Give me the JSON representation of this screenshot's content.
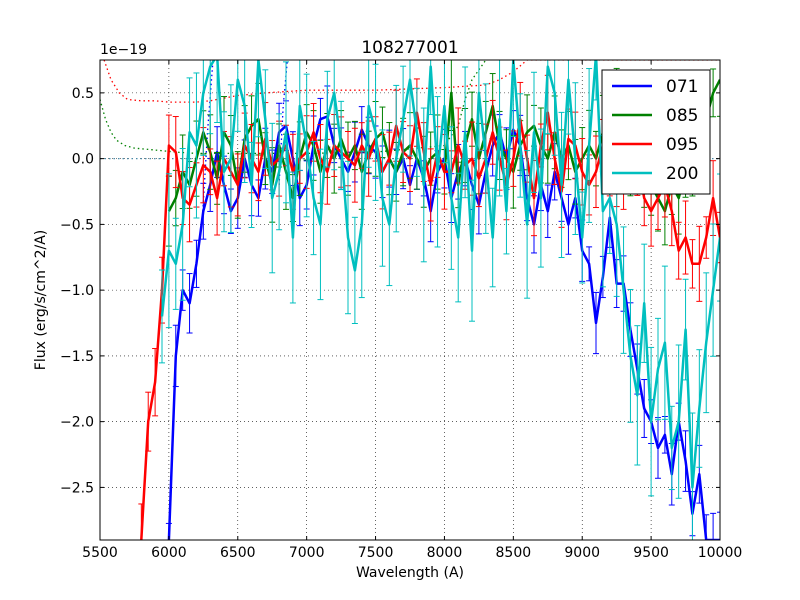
{
  "chart_data": {
    "type": "line",
    "title": "108277001",
    "xlabel": "Wavelength (A)",
    "ylabel": "Flux (erg/s/cm^2/A)",
    "offset_text": "1e−19",
    "xlim": [
      5500,
      10000
    ],
    "ylim": [
      -2.9,
      0.75
    ],
    "xticks": [
      5500,
      6000,
      6500,
      7000,
      7500,
      8000,
      8500,
      9000,
      9500,
      10000
    ],
    "yticks": [
      -2.5,
      -2.0,
      -1.5,
      -1.0,
      -0.5,
      0.0,
      0.5
    ],
    "xtick_labels": [
      "5500",
      "6000",
      "6500",
      "7000",
      "7500",
      "8000",
      "8500",
      "9000",
      "9500",
      "10000"
    ],
    "ytick_labels": [
      "−2.5",
      "−2.0",
      "−1.5",
      "−1.0",
      "−0.5",
      "0.0",
      "0.5"
    ],
    "grid": true,
    "legend_position": "top-right",
    "series": [
      {
        "name": "071",
        "color": "#0000ff",
        "x": [
          6000,
          6050,
          6100,
          6150,
          6200,
          6250,
          6300,
          6350,
          6400,
          6450,
          6500,
          6550,
          6600,
          6650,
          6700,
          6750,
          6800,
          6850,
          6900,
          6950,
          7000,
          7050,
          7100,
          7150,
          7200,
          7250,
          7300,
          7350,
          7400,
          7450,
          7500,
          7550,
          7600,
          7650,
          7700,
          7750,
          7800,
          7850,
          7900,
          7950,
          8000,
          8050,
          8100,
          8150,
          8200,
          8250,
          8300,
          8350,
          8400,
          8450,
          8500,
          8550,
          8600,
          8650,
          8700,
          8750,
          8800,
          8850,
          8900,
          8950,
          9000,
          9050,
          9100,
          9150,
          9200,
          9250,
          9300,
          9350,
          9400,
          9450,
          9500,
          9550,
          9600,
          9650,
          9700,
          9750,
          9800,
          9850,
          9900,
          9950,
          10000
        ],
        "y": [
          -2.9,
          -1.5,
          -1.0,
          -1.1,
          -0.8,
          -0.4,
          -0.2,
          0.05,
          -0.2,
          -0.4,
          -0.3,
          0.0,
          -0.2,
          -0.3,
          0.0,
          -0.1,
          0.2,
          0.25,
          0.0,
          -0.3,
          -0.2,
          0.1,
          0.3,
          0.32,
          0.1,
          0.0,
          -0.1,
          0.05,
          0.22,
          0.1,
          0.05,
          -0.1,
          0.0,
          -0.1,
          0.0,
          -0.2,
          0.0,
          -0.15,
          -0.4,
          -0.1,
          0.0,
          -0.3,
          -0.1,
          0.0,
          -0.2,
          -0.35,
          -0.1,
          0.1,
          0.2,
          0.0,
          0.22,
          0.1,
          -0.3,
          -0.5,
          -0.2,
          -0.4,
          -0.1,
          -0.3,
          -0.5,
          -0.3,
          -0.7,
          -0.8,
          -1.25,
          -0.9,
          -0.45,
          -0.95,
          -0.95,
          -1.3,
          -1.6,
          -1.9,
          -2.0,
          -2.2,
          -2.1,
          -2.4,
          -2.0,
          -2.3,
          -2.7,
          -2.4,
          -2.9,
          -2.9,
          -2.9
        ],
        "err": 0.18
      },
      {
        "name": "085",
        "color": "#008000",
        "x": [
          6000,
          6050,
          6100,
          6150,
          6200,
          6250,
          6300,
          6350,
          6400,
          6450,
          6500,
          6550,
          6600,
          6650,
          6700,
          6750,
          6800,
          6850,
          6900,
          6950,
          7000,
          7050,
          7100,
          7150,
          7200,
          7250,
          7300,
          7350,
          7400,
          7450,
          7500,
          7550,
          7600,
          7650,
          7700,
          7750,
          7800,
          7850,
          7900,
          7950,
          8000,
          8050,
          8100,
          8150,
          8200,
          8250,
          8300,
          8350,
          8400,
          8450,
          8500,
          8550,
          8600,
          8650,
          8700,
          8750,
          8800,
          8850,
          8900,
          8950,
          9000,
          9050,
          9100,
          9150,
          9200,
          9250,
          9300,
          9350,
          9400,
          9450,
          9500,
          9550,
          9600,
          9650,
          9700,
          9750,
          9800,
          9850,
          9900,
          9950,
          10000
        ],
        "y": [
          -0.4,
          -0.3,
          -0.1,
          -0.2,
          0.0,
          0.2,
          0.05,
          -0.15,
          0.2,
          0.1,
          -0.2,
          0.15,
          0.25,
          0.3,
          0.0,
          -0.2,
          0.1,
          -0.1,
          -0.3,
          0.0,
          0.2,
          0.1,
          -0.1,
          0.1,
          0.0,
          0.15,
          0.0,
          0.1,
          -0.1,
          0.05,
          0.15,
          0.2,
          0.0,
          -0.1,
          0.05,
          0.1,
          0.0,
          -0.1,
          0.0,
          0.05,
          -0.1,
          0.5,
          -0.2,
          0.1,
          0.3,
          0.0,
          0.2,
          0.4,
          0.1,
          0.0,
          -0.1,
          0.1,
          0.2,
          0.25,
          0.1,
          0.0,
          0.2,
          0.0,
          0.1,
          -0.1,
          0.0,
          0.1,
          0.0,
          0.2,
          0.3,
          0.4,
          0.2,
          0.0,
          0.1,
          -0.1,
          -0.2,
          -0.3,
          -0.4,
          -0.2,
          -0.3,
          -0.1,
          0.0,
          0.1,
          0.3,
          0.5,
          0.6
        ],
        "err": 0.22
      },
      {
        "name": "095",
        "color": "#ff0000",
        "x": [
          5800,
          5850,
          5900,
          5950,
          6000,
          6050,
          6100,
          6150,
          6200,
          6250,
          6300,
          6350,
          6400,
          6450,
          6500,
          6550,
          6600,
          6650,
          6700,
          6750,
          6800,
          6850,
          6900,
          6950,
          7000,
          7050,
          7100,
          7150,
          7200,
          7250,
          7300,
          7350,
          7400,
          7450,
          7500,
          7550,
          7600,
          7650,
          7700,
          7750,
          7800,
          7850,
          7900,
          7950,
          8000,
          8050,
          8100,
          8150,
          8200,
          8250,
          8300,
          8350,
          8400,
          8450,
          8500,
          8550,
          8600,
          8650,
          8700,
          8750,
          8800,
          8850,
          8900,
          8950,
          9000,
          9050,
          9100,
          9150,
          9200,
          9250,
          9300,
          9350,
          9400,
          9450,
          9500,
          9550,
          9600,
          9650,
          9700,
          9750,
          9800,
          9850,
          9900,
          9950,
          10000
        ],
        "y": [
          -2.9,
          -2.0,
          -1.7,
          -1.0,
          0.1,
          0.05,
          -0.3,
          -0.35,
          -0.2,
          -0.05,
          -0.1,
          -0.3,
          0.0,
          -0.1,
          -0.2,
          0.1,
          0.0,
          -0.1,
          0.15,
          -0.05,
          0.0,
          0.1,
          -0.1,
          0.0,
          0.05,
          0.2,
          0.0,
          -0.1,
          0.1,
          0.05,
          0.0,
          -0.05,
          0.1,
          0.0,
          0.15,
          -0.1,
          0.0,
          0.25,
          0.05,
          0.0,
          0.35,
          0.05,
          -0.2,
          0.05,
          -0.1,
          -0.1,
          0.1,
          -0.05,
          0.0,
          -0.15,
          0.0,
          0.2,
          0.0,
          -0.2,
          0.0,
          0.3,
          0.0,
          -0.3,
          0.1,
          0.35,
          0.0,
          -0.25,
          0.15,
          0.1,
          -0.1,
          -0.2,
          -0.1,
          0.1,
          0.0,
          -0.2,
          -0.1,
          0.2,
          0.0,
          -0.3,
          -0.4,
          -0.3,
          -0.2,
          -0.4,
          -0.7,
          -0.6,
          -0.8,
          -0.8,
          -0.6,
          -0.3,
          -0.6
        ],
        "err": 0.22
      },
      {
        "name": "200",
        "color": "#00bfbf",
        "x": [
          5950,
          6000,
          6050,
          6100,
          6150,
          6200,
          6250,
          6300,
          6350,
          6400,
          6450,
          6500,
          6550,
          6600,
          6650,
          6700,
          6750,
          6800,
          6850,
          6900,
          6950,
          7000,
          7050,
          7100,
          7150,
          7200,
          7250,
          7300,
          7350,
          7400,
          7450,
          7500,
          7550,
          7600,
          7650,
          7700,
          7750,
          7800,
          7850,
          7900,
          7950,
          8000,
          8050,
          8100,
          8150,
          8200,
          8250,
          8300,
          8350,
          8400,
          8450,
          8500,
          8550,
          8600,
          8650,
          8700,
          8750,
          8800,
          8850,
          8900,
          8950,
          9000,
          9050,
          9100,
          9150,
          9200,
          9250,
          9300,
          9350,
          9400,
          9450,
          9500,
          9550,
          9600,
          9650,
          9700,
          9750,
          9800,
          9850,
          9900,
          9950,
          10000
        ],
        "y": [
          -1.2,
          -0.7,
          -0.8,
          -0.5,
          0.2,
          0.1,
          0.5,
          0.7,
          0.8,
          -0.1,
          0.0,
          0.6,
          0.4,
          -0.2,
          0.75,
          0.3,
          -0.3,
          -0.1,
          0.2,
          -0.6,
          0.4,
          0.1,
          -0.3,
          -0.5,
          0.3,
          0.5,
          0.1,
          -0.6,
          -0.85,
          -0.5,
          0.4,
          0.2,
          -0.3,
          -0.5,
          0.0,
          0.3,
          0.6,
          0.2,
          -0.2,
          0.7,
          -0.1,
          0.4,
          -0.3,
          -0.6,
          0.2,
          -0.7,
          0.5,
          0.0,
          -0.6,
          0.3,
          -0.4,
          0.75,
          0.1,
          -0.5,
          0.2,
          -0.3,
          0.7,
          0.5,
          -0.2,
          0.6,
          0.0,
          -0.6,
          0.1,
          0.8,
          -0.4,
          -0.3,
          -0.5,
          -1.0,
          -1.5,
          -1.8,
          -1.1,
          -2.0,
          -1.6,
          -1.4,
          -2.2,
          -2.0,
          -1.3,
          -2.5,
          -1.9,
          -1.4,
          -1.0,
          -0.6
        ],
        "err": 0.45
      }
    ],
    "reference_lines": [
      {
        "name": "red-dotted",
        "color": "#ff0000",
        "x": [
          5530,
          5580,
          5640,
          5700,
          5800,
          5900,
          6000,
          6100,
          6200,
          6300,
          6400,
          6500,
          6700,
          7000,
          7500,
          8000,
          8300,
          8400,
          8500,
          8600,
          8800,
          9000,
          9200,
          9400,
          9600,
          9800,
          10000
        ],
        "y": [
          0.75,
          0.6,
          0.5,
          0.45,
          0.44,
          0.44,
          0.43,
          0.43,
          0.43,
          0.44,
          0.46,
          0.48,
          0.5,
          0.52,
          0.52,
          0.54,
          0.56,
          0.6,
          0.66,
          0.75,
          0.75,
          0.75,
          0.75,
          0.75,
          0.75,
          0.75,
          0.75
        ]
      },
      {
        "name": "green-dotted",
        "color": "#008000",
        "x": [
          5500,
          5540,
          5580,
          5620,
          5680,
          5750,
          5850,
          5950,
          6050,
          6200,
          6400,
          6600,
          7000,
          7500,
          8000,
          8100,
          8150,
          8200,
          8300
        ],
        "y": [
          0.45,
          0.3,
          0.2,
          0.14,
          0.1,
          0.08,
          0.07,
          0.06,
          0.05,
          0.04,
          0.04,
          0.04,
          0.04,
          0.05,
          0.1,
          0.25,
          0.45,
          0.6,
          0.75
        ]
      },
      {
        "name": "teal-dotted",
        "color": "#4a8aa8",
        "x": [
          5500,
          6000,
          6500,
          7000,
          7500,
          8000,
          8500,
          9000,
          9500,
          10000
        ],
        "y": [
          0.0,
          0.0,
          0.0,
          0.0,
          0.0,
          0.0,
          0.0,
          0.0,
          0.0,
          0.0
        ]
      },
      {
        "name": "blue-dotted",
        "color": "#0000ff",
        "x": [
          6240,
          6280,
          6320
        ],
        "y": [
          -0.5,
          0.2,
          0.75
        ]
      },
      {
        "name": "blue-dotted-2",
        "color": "#0000ff",
        "x": [
          6800,
          6830,
          6860
        ],
        "y": [
          -0.2,
          0.4,
          0.75
        ]
      }
    ]
  }
}
